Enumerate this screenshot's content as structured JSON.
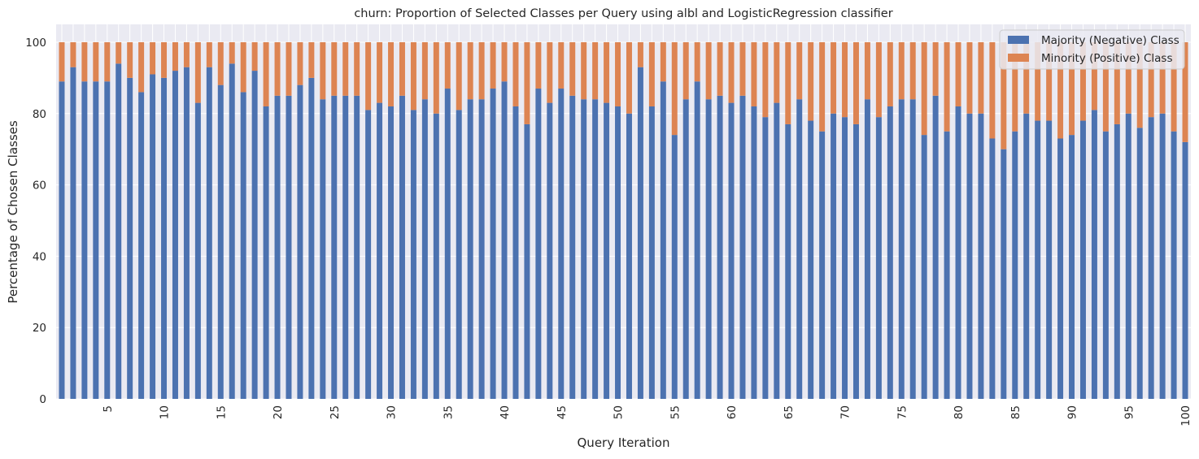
{
  "chart_data": {
    "type": "bar",
    "stacked": true,
    "title": "churn: Proportion of Selected Classes per Query using albl and LogisticRegression classifier",
    "xlabel": "Query Iteration",
    "ylabel": "Percentage of Chosen Classes",
    "ylim": [
      0,
      105
    ],
    "yticks": [
      0,
      20,
      40,
      60,
      80,
      100
    ],
    "x": [
      1,
      2,
      3,
      4,
      5,
      6,
      7,
      8,
      9,
      10,
      11,
      12,
      13,
      14,
      15,
      16,
      17,
      18,
      19,
      20,
      21,
      22,
      23,
      24,
      25,
      26,
      27,
      28,
      29,
      30,
      31,
      32,
      33,
      34,
      35,
      36,
      37,
      38,
      39,
      40,
      41,
      42,
      43,
      44,
      45,
      46,
      47,
      48,
      49,
      50,
      51,
      52,
      53,
      54,
      55,
      56,
      57,
      58,
      59,
      60,
      61,
      62,
      63,
      64,
      65,
      66,
      67,
      68,
      69,
      70,
      71,
      72,
      73,
      74,
      75,
      76,
      77,
      78,
      79,
      80,
      81,
      82,
      83,
      84,
      85,
      86,
      87,
      88,
      89,
      90,
      91,
      92,
      93,
      94,
      95,
      96,
      97,
      98,
      99,
      100
    ],
    "xtick_labels": [
      "5",
      "10",
      "15",
      "20",
      "25",
      "30",
      "35",
      "40",
      "45",
      "50",
      "55",
      "60",
      "65",
      "70",
      "75",
      "80",
      "85",
      "90",
      "95",
      "100"
    ],
    "grid": true,
    "legend_position": "top-right",
    "series": [
      {
        "name": "Majority (Negative) Class",
        "color": "#4c72b0",
        "values": [
          89,
          93,
          89,
          89,
          89,
          94,
          90,
          86,
          91,
          90,
          92,
          93,
          83,
          93,
          88,
          94,
          86,
          92,
          82,
          85,
          85,
          88,
          90,
          84,
          85,
          85,
          85,
          81,
          83,
          82,
          85,
          81,
          84,
          80,
          87,
          81,
          84,
          84,
          87,
          89,
          82,
          77,
          87,
          83,
          87,
          85,
          84,
          84,
          83,
          82,
          80,
          93,
          82,
          89,
          74,
          84,
          89,
          84,
          85,
          83,
          85,
          82,
          79,
          83,
          77,
          84,
          78,
          75,
          80,
          79,
          77,
          84,
          79,
          82,
          84,
          84,
          74,
          85,
          75,
          82,
          80,
          80,
          73,
          70,
          75,
          80,
          78,
          78,
          73,
          74,
          78,
          81,
          75,
          77,
          80,
          76,
          79,
          80,
          75,
          72
        ]
      },
      {
        "name": "Minority (Positive) Class",
        "color": "#dd8452",
        "values": [
          11,
          7,
          11,
          11,
          11,
          6,
          10,
          14,
          9,
          10,
          8,
          7,
          17,
          7,
          12,
          6,
          14,
          8,
          18,
          15,
          15,
          12,
          10,
          16,
          15,
          15,
          15,
          19,
          17,
          18,
          15,
          19,
          16,
          20,
          13,
          19,
          16,
          16,
          13,
          11,
          18,
          23,
          13,
          17,
          13,
          15,
          16,
          16,
          17,
          18,
          20,
          7,
          18,
          11,
          26,
          16,
          11,
          16,
          15,
          17,
          15,
          18,
          21,
          17,
          23,
          16,
          22,
          25,
          20,
          21,
          23,
          16,
          21,
          18,
          16,
          16,
          26,
          15,
          25,
          18,
          20,
          20,
          27,
          30,
          25,
          20,
          22,
          22,
          27,
          26,
          22,
          19,
          25,
          23,
          20,
          24,
          21,
          20,
          25,
          28
        ]
      }
    ]
  }
}
